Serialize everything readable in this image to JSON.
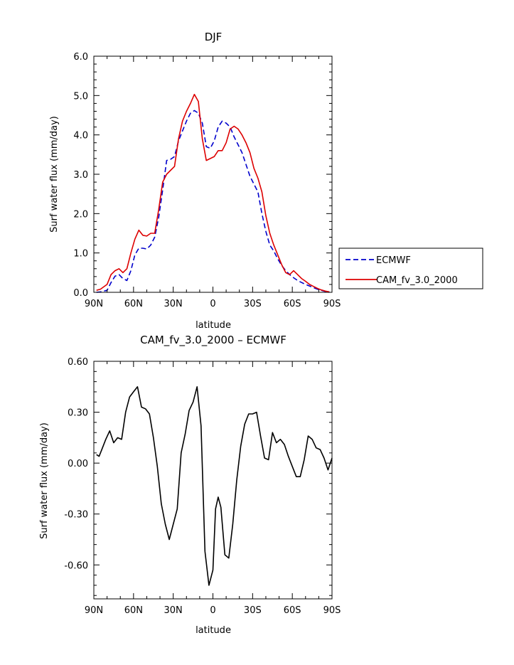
{
  "chart_data": [
    {
      "type": "line",
      "title": "DJF",
      "xlabel": "latitude",
      "ylabel": "Surf water flux (mm/day)",
      "xlim": [
        90,
        -90
      ],
      "ylim": [
        0,
        6
      ],
      "x_ticks": [
        90,
        60,
        30,
        0,
        -30,
        -60,
        -90
      ],
      "x_tick_labels": [
        "90N",
        "60N",
        "30N",
        "0",
        "30S",
        "60S",
        "90S"
      ],
      "y_ticks": [
        0,
        1,
        2,
        3,
        4,
        5,
        6
      ],
      "y_tick_labels": [
        "0.0",
        "1.0",
        "2.0",
        "3.0",
        "4.0",
        "5.0",
        "6.0"
      ],
      "grid": false,
      "legend_position": "right",
      "x": [
        88,
        85,
        80,
        77,
        74,
        71,
        68,
        65,
        62,
        59,
        56,
        53,
        50,
        47,
        44,
        41,
        38,
        35,
        32,
        29,
        26,
        23,
        20,
        17,
        14,
        11,
        8,
        5,
        2,
        -1,
        -4,
        -7,
        -10,
        -13,
        -16,
        -19,
        -22,
        -25,
        -28,
        -31,
        -34,
        -37,
        -40,
        -43,
        -46,
        -49,
        -52,
        -55,
        -58,
        -61,
        -64,
        -67,
        -70,
        -73,
        -76,
        -79,
        -82,
        -85,
        -88
      ],
      "series": [
        {
          "name": "ECMWF",
          "color": "#0000cc",
          "dash": "dashed",
          "values": [
            0.0,
            0.01,
            0.05,
            0.25,
            0.41,
            0.45,
            0.35,
            0.3,
            0.55,
            0.95,
            1.12,
            1.12,
            1.1,
            1.2,
            1.4,
            1.9,
            2.6,
            3.35,
            3.38,
            3.45,
            3.85,
            4.1,
            4.35,
            4.55,
            4.62,
            4.55,
            4.3,
            3.7,
            3.66,
            3.85,
            4.2,
            4.35,
            4.3,
            4.2,
            3.95,
            3.75,
            3.55,
            3.25,
            2.95,
            2.75,
            2.55,
            2.0,
            1.55,
            1.2,
            1.05,
            0.85,
            0.68,
            0.55,
            0.45,
            0.37,
            0.3,
            0.25,
            0.2,
            0.16,
            0.12,
            0.08,
            0.05,
            0.02,
            0.0
          ]
        },
        {
          "name": "CAM_fv_3.0_2000",
          "color": "#dd0000",
          "dash": "solid",
          "values": [
            0.05,
            0.08,
            0.2,
            0.45,
            0.55,
            0.6,
            0.5,
            0.6,
            1.0,
            1.35,
            1.58,
            1.45,
            1.43,
            1.5,
            1.5,
            2.1,
            2.8,
            3.0,
            3.1,
            3.2,
            3.9,
            4.35,
            4.6,
            4.8,
            5.03,
            4.85,
            3.9,
            3.35,
            3.4,
            3.45,
            3.6,
            3.6,
            3.8,
            4.15,
            4.22,
            4.15,
            4.0,
            3.8,
            3.55,
            3.15,
            2.9,
            2.55,
            1.95,
            1.5,
            1.2,
            0.95,
            0.7,
            0.5,
            0.45,
            0.55,
            0.45,
            0.35,
            0.28,
            0.2,
            0.15,
            0.1,
            0.06,
            0.03,
            0.01
          ]
        }
      ]
    },
    {
      "type": "line",
      "title": "CAM_fv_3.0_2000 – ECMWF",
      "xlabel": "latitude",
      "ylabel": "Surf water flux (mm/day)",
      "xlim": [
        90,
        -90
      ],
      "ylim": [
        -0.8,
        0.6
      ],
      "x_ticks": [
        90,
        60,
        30,
        0,
        -30,
        -60,
        -90
      ],
      "x_tick_labels": [
        "90N",
        "60N",
        "30N",
        "0",
        "30S",
        "60S",
        "90S"
      ],
      "y_ticks": [
        -0.6,
        -0.3,
        0.0,
        0.3,
        0.6
      ],
      "y_tick_labels": [
        "-0.60",
        "-0.30",
        "0.00",
        "0.30",
        "0.60"
      ],
      "grid": false,
      "x": [
        88,
        86,
        84,
        81,
        78,
        75,
        72,
        69,
        66,
        63,
        60,
        57,
        54,
        51,
        48,
        45,
        42,
        39,
        36,
        33,
        30,
        27,
        24,
        21,
        18,
        15,
        12,
        9,
        6,
        3,
        0,
        -2,
        -4,
        -6,
        -9,
        -12,
        -15,
        -18,
        -21,
        -24,
        -27,
        -30,
        -33,
        -36,
        -39,
        -42,
        -45,
        -48,
        -51,
        -54,
        -57,
        -60,
        -63,
        -66,
        -69,
        -72,
        -75,
        -78,
        -81,
        -84,
        -87,
        -90
      ],
      "series": [
        {
          "name": "",
          "color": "#000000",
          "dash": "solid",
          "values": [
            0.05,
            0.04,
            0.08,
            0.14,
            0.19,
            0.12,
            0.15,
            0.14,
            0.3,
            0.39,
            0.42,
            0.45,
            0.33,
            0.32,
            0.29,
            0.15,
            -0.02,
            -0.24,
            -0.36,
            -0.45,
            -0.36,
            -0.27,
            0.06,
            0.17,
            0.31,
            0.36,
            0.45,
            0.22,
            -0.52,
            -0.72,
            -0.63,
            -0.27,
            -0.2,
            -0.26,
            -0.54,
            -0.56,
            -0.36,
            -0.1,
            0.1,
            0.23,
            0.29,
            0.29,
            0.3,
            0.16,
            0.03,
            0.02,
            0.18,
            0.12,
            0.14,
            0.11,
            0.04,
            -0.02,
            -0.08,
            -0.08,
            0.02,
            0.16,
            0.14,
            0.09,
            0.08,
            0.03,
            -0.04,
            0.03
          ]
        }
      ]
    }
  ]
}
